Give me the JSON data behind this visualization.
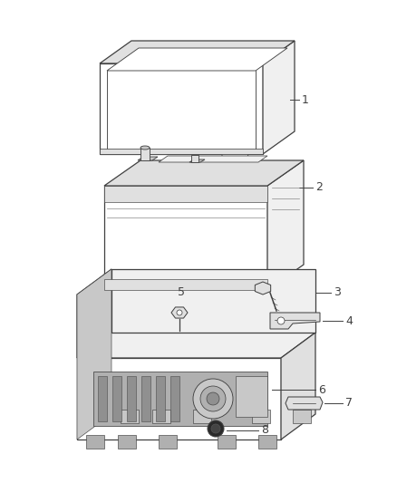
{
  "background_color": "#ffffff",
  "line_color": "#404040",
  "fill_light": "#f0f0f0",
  "fill_mid": "#e0e0e0",
  "fill_dark": "#c8c8c8",
  "fill_darker": "#b0b0b0",
  "fill_darkest": "#909090",
  "figsize": [
    4.38,
    5.33
  ],
  "dpi": 100,
  "label_fontsize": 9,
  "lw": 0.9
}
